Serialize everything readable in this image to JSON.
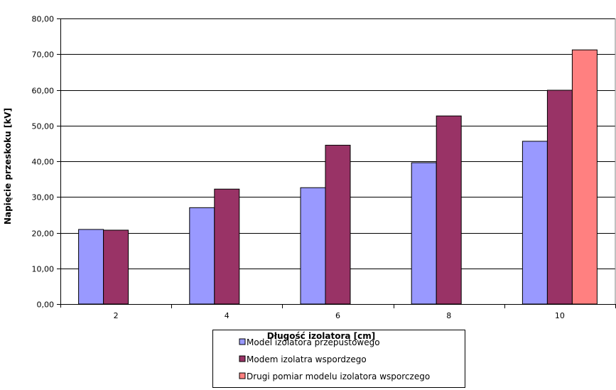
{
  "chart_data": {
    "type": "bar",
    "title": "",
    "xlabel": "Długość izolatora  [cm]",
    "ylabel": "Napięcie przeskoku [kV]",
    "categories": [
      "2",
      "4",
      "6",
      "8",
      "10"
    ],
    "ylim": [
      0,
      80
    ],
    "yticks": [
      "0,00",
      "10,00",
      "20,00",
      "30,00",
      "40,00",
      "50,00",
      "60,00",
      "70,00",
      "80,00"
    ],
    "grid": true,
    "legend_position": "bottom-center",
    "series": [
      {
        "name": "Model izolatora przepustowego",
        "color": "#9999FF",
        "values": [
          20.9,
          27.0,
          32.6,
          39.6,
          45.6
        ]
      },
      {
        "name": "Modem izolatra wspordzego",
        "color": "#993366",
        "values": [
          20.7,
          32.2,
          44.5,
          52.7,
          59.9
        ]
      },
      {
        "name": "Drugi pomiar modelu izolatora wsporczego",
        "color": "#FF8080",
        "values": [
          null,
          null,
          null,
          null,
          71.2
        ]
      }
    ]
  }
}
